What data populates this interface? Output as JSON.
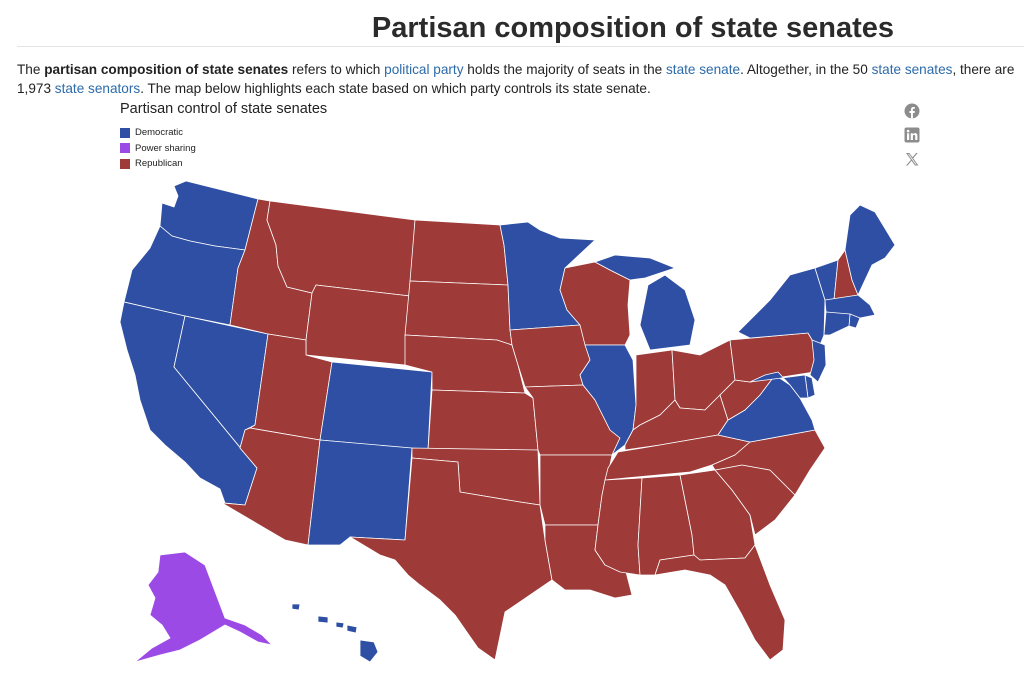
{
  "header": {
    "title": "Partisan composition of state senates"
  },
  "intro": {
    "t1": "The ",
    "b1": "partisan composition of state senates",
    "t2": " refers to which ",
    "l1": "political party",
    "t3": " holds the majority of seats in the ",
    "l2": "state senate",
    "t4": ". Altogether, in the 50 ",
    "l3": "state senates",
    "t5": ", there are 1,973 ",
    "l4": "state senators",
    "t6": ". The map below highlights each state based on which party controls its state senate."
  },
  "map": {
    "title": "Partisan control of state senates",
    "legend": [
      {
        "label": "Democratic",
        "color": "#2e4fa3"
      },
      {
        "label": "Power sharing",
        "color": "#9b4ae6"
      },
      {
        "label": "Republican",
        "color": "#9e3a38"
      }
    ],
    "states": {
      "washington": "democratic",
      "oregon": "democratic",
      "california": "democratic",
      "nevada": "democratic",
      "idaho": "republican",
      "montana": "republican",
      "wyoming": "republican",
      "utah": "republican",
      "arizona": "republican",
      "colorado": "democratic",
      "new-mexico": "democratic",
      "north-dakota": "republican",
      "south-dakota": "republican",
      "nebraska": "republican",
      "kansas": "republican",
      "oklahoma": "republican",
      "texas": "republican",
      "minnesota": "democratic",
      "iowa": "republican",
      "missouri": "republican",
      "arkansas": "republican",
      "louisiana": "republican",
      "wisconsin": "republican",
      "illinois": "democratic",
      "michigan": "democratic",
      "indiana": "republican",
      "ohio": "republican",
      "kentucky": "republican",
      "tennessee": "republican",
      "mississippi": "republican",
      "alabama": "republican",
      "georgia": "republican",
      "florida": "republican",
      "south-carolina": "republican",
      "north-carolina": "republican",
      "virginia": "democratic",
      "west-virginia": "republican",
      "pennsylvania": "republican",
      "new-york": "democratic",
      "vermont": "democratic",
      "new-hampshire": "republican",
      "maine": "democratic",
      "massachusetts": "democratic",
      "rhode-island": "democratic",
      "connecticut": "democratic",
      "new-jersey": "democratic",
      "delaware": "democratic",
      "maryland": "democratic",
      "alaska": "power-sharing",
      "hawaii": "democratic"
    }
  },
  "colors": {
    "democratic": "#2e4fa3",
    "power-sharing": "#9b4ae6",
    "republican": "#9e3a38"
  },
  "share": {
    "icons": [
      "facebook-icon",
      "linkedin-icon",
      "x-icon"
    ]
  }
}
